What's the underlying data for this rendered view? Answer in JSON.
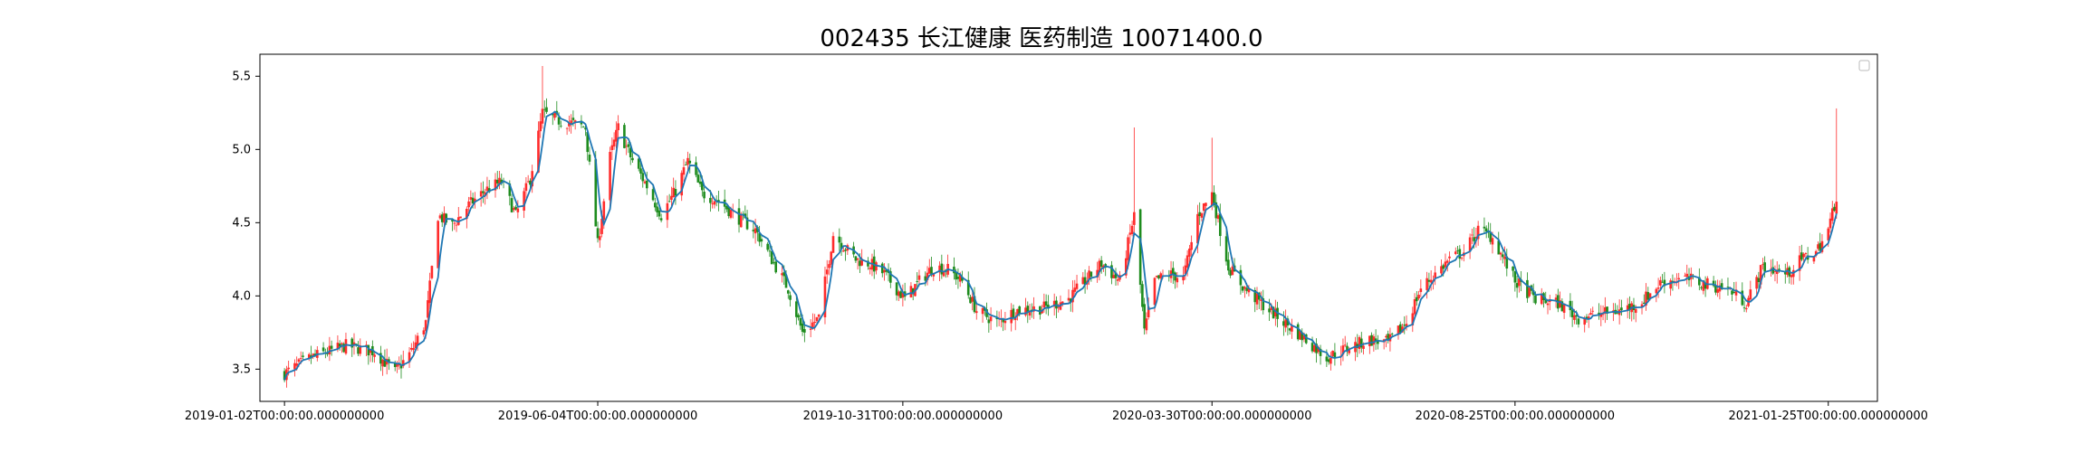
{
  "chart_data": {
    "type": "candlestick",
    "title": "002435 长江健康 医药制造 10071400.0",
    "xlabel": "",
    "ylabel": "",
    "ylim": [
      3.28,
      5.65
    ],
    "yticks": [
      "3.5",
      "4.0",
      "4.5",
      "5.0",
      "5.5"
    ],
    "xticks": [
      {
        "date": "2019-01-02",
        "label": "2019-01-02T00:00:00.000000000"
      },
      {
        "date": "2019-06-04",
        "label": "2019-06-04T00:00:00.000000000"
      },
      {
        "date": "2019-10-31",
        "label": "2019-10-31T00:00:00.000000000"
      },
      {
        "date": "2020-03-30",
        "label": "2020-03-30T00:00:00.000000000"
      },
      {
        "date": "2020-08-25",
        "label": "2020-08-25T00:00:00.000000000"
      },
      {
        "date": "2021-01-25",
        "label": "2021-01-25T00:00:00.000000000"
      }
    ],
    "x_range": [
      "2018-12-21",
      "2021-02-18"
    ],
    "up_color": "#ff2b2b",
    "down_color": "#1e8c1e",
    "ma_color": "#1f77b4",
    "legend": "top-right",
    "grid": false,
    "close_path": [
      [
        "2019-01-02",
        3.47
      ],
      [
        "2019-01-15",
        3.58
      ],
      [
        "2019-02-01",
        3.66
      ],
      [
        "2019-02-15",
        3.62
      ],
      [
        "2019-02-25",
        3.48
      ],
      [
        "2019-03-05",
        3.62
      ],
      [
        "2019-03-12",
        3.82
      ],
      [
        "2019-03-18",
        4.55
      ],
      [
        "2019-03-25",
        4.48
      ],
      [
        "2019-04-02",
        4.62
      ],
      [
        "2019-04-10",
        4.72
      ],
      [
        "2019-04-18",
        4.78
      ],
      [
        "2019-04-25",
        4.55
      ],
      [
        "2019-05-02",
        4.8
      ],
      [
        "2019-05-08",
        5.25
      ],
      [
        "2019-05-15",
        5.2
      ],
      [
        "2019-05-22",
        5.18
      ],
      [
        "2019-05-29",
        5.15
      ],
      [
        "2019-06-04",
        4.35
      ],
      [
        "2019-06-10",
        4.95
      ],
      [
        "2019-06-14",
        5.15
      ],
      [
        "2019-06-20",
        4.95
      ],
      [
        "2019-06-28",
        4.75
      ],
      [
        "2019-07-05",
        4.55
      ],
      [
        "2019-07-12",
        4.72
      ],
      [
        "2019-07-18",
        4.92
      ],
      [
        "2019-07-25",
        4.7
      ],
      [
        "2019-08-02",
        4.65
      ],
      [
        "2019-08-10",
        4.55
      ],
      [
        "2019-08-20",
        4.45
      ],
      [
        "2019-08-28",
        4.25
      ],
      [
        "2019-09-05",
        4.05
      ],
      [
        "2019-09-12",
        3.75
      ],
      [
        "2019-09-20",
        3.85
      ],
      [
        "2019-09-27",
        4.42
      ],
      [
        "2019-10-08",
        4.25
      ],
      [
        "2019-10-15",
        4.22
      ],
      [
        "2019-10-22",
        4.15
      ],
      [
        "2019-11-01",
        3.98
      ],
      [
        "2019-11-08",
        4.1
      ],
      [
        "2019-11-15",
        4.2
      ],
      [
        "2019-11-22",
        4.18
      ],
      [
        "2019-11-29",
        4.1
      ],
      [
        "2019-12-06",
        3.9
      ],
      [
        "2019-12-16",
        3.82
      ],
      [
        "2019-12-25",
        3.9
      ],
      [
        "2020-01-08",
        3.92
      ],
      [
        "2020-01-20",
        3.98
      ],
      [
        "2020-02-05",
        4.22
      ],
      [
        "2020-02-14",
        4.1
      ],
      [
        "2020-02-21",
        4.55
      ],
      [
        "2020-02-26",
        3.75
      ],
      [
        "2020-03-02",
        4.1
      ],
      [
        "2020-03-09",
        4.15
      ],
      [
        "2020-03-16",
        4.12
      ],
      [
        "2020-03-23",
        4.55
      ],
      [
        "2020-03-30",
        4.7
      ],
      [
        "2020-04-07",
        4.2
      ],
      [
        "2020-04-15",
        4.05
      ],
      [
        "2020-04-23",
        3.95
      ],
      [
        "2020-05-06",
        3.8
      ],
      [
        "2020-05-15",
        3.7
      ],
      [
        "2020-05-25",
        3.58
      ],
      [
        "2020-06-05",
        3.65
      ],
      [
        "2020-06-15",
        3.7
      ],
      [
        "2020-06-24",
        3.68
      ],
      [
        "2020-07-03",
        3.82
      ],
      [
        "2020-07-10",
        4.05
      ],
      [
        "2020-07-17",
        4.15
      ],
      [
        "2020-07-24",
        4.25
      ],
      [
        "2020-07-31",
        4.3
      ],
      [
        "2020-08-07",
        4.45
      ],
      [
        "2020-08-14",
        4.4
      ],
      [
        "2020-08-25",
        4.1
      ],
      [
        "2020-09-04",
        3.98
      ],
      [
        "2020-09-15",
        3.95
      ],
      [
        "2020-09-25",
        3.85
      ],
      [
        "2020-10-15",
        3.9
      ],
      [
        "2020-10-25",
        3.95
      ],
      [
        "2020-11-05",
        4.1
      ],
      [
        "2020-11-16",
        4.12
      ],
      [
        "2020-11-26",
        4.08
      ],
      [
        "2020-12-07",
        4.05
      ],
      [
        "2020-12-16",
        3.95
      ],
      [
        "2020-12-24",
        4.2
      ],
      [
        "2021-01-05",
        4.15
      ],
      [
        "2021-01-12",
        4.25
      ],
      [
        "2021-01-19",
        4.3
      ],
      [
        "2021-01-25",
        4.45
      ],
      [
        "2021-01-29",
        4.68
      ]
    ],
    "annotations": [
      {
        "date": "2019-05-08",
        "high": 5.57
      },
      {
        "date": "2020-02-21",
        "high": 5.15
      },
      {
        "date": "2020-03-30",
        "high": 5.08
      },
      {
        "date": "2021-01-29",
        "high": 5.28
      }
    ]
  }
}
